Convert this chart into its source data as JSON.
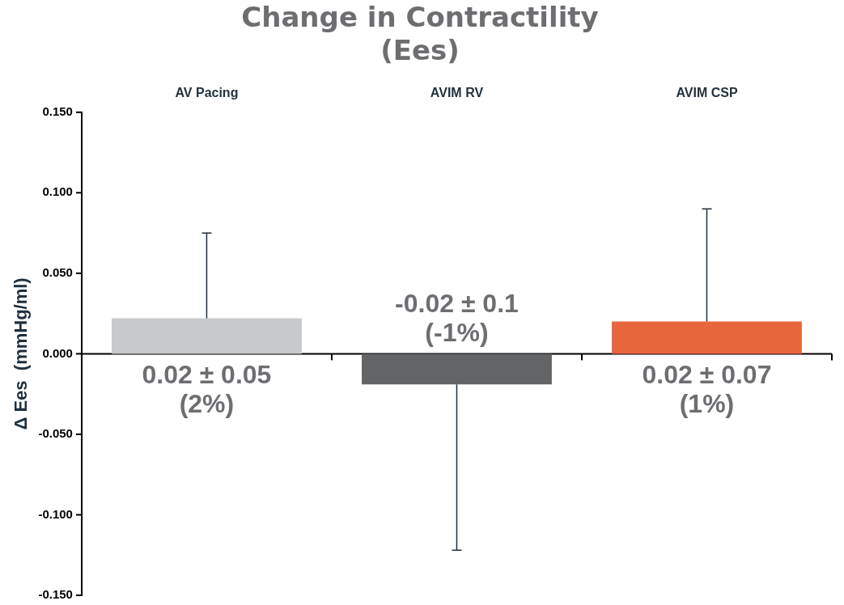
{
  "chart_data": {
    "type": "bar",
    "title": "Change in Contractility\n(Ees)",
    "ylabel": "Δ Ees  (mmHg/ml)",
    "categories": [
      "AV Pacing",
      "AVIM RV",
      "AVIM CSP"
    ],
    "values": [
      0.022,
      -0.019,
      0.02
    ],
    "colors": [
      "#c8c9ca",
      "#636466",
      "#e8663d"
    ],
    "errors": [
      [
        0.022,
        0.075
      ],
      [
        -0.122,
        -0.019
      ],
      [
        0.02,
        0.09
      ]
    ],
    "value_labels": [
      "0.02 ± 0.05\n(2%)",
      "-0.02 ± 0.1\n(-1%)",
      "0.02 ± 0.07\n(1%)"
    ],
    "ylim": [
      -0.15,
      0.15
    ],
    "yticks": [
      {
        "value": -0.15,
        "label": "-0.150"
      },
      {
        "value": -0.1,
        "label": "-0.100"
      },
      {
        "value": -0.05,
        "label": "-0.050"
      },
      {
        "value": 0,
        "label": "0.000"
      },
      {
        "value": 0.05,
        "label": "0.050"
      },
      {
        "value": 0.1,
        "label": "0.100"
      },
      {
        "value": 0.15,
        "label": "0.150"
      }
    ],
    "ref_lines": [
      {
        "axis": "y",
        "value": 0,
        "color": "#000000"
      }
    ],
    "grid": false,
    "legend": false
  }
}
